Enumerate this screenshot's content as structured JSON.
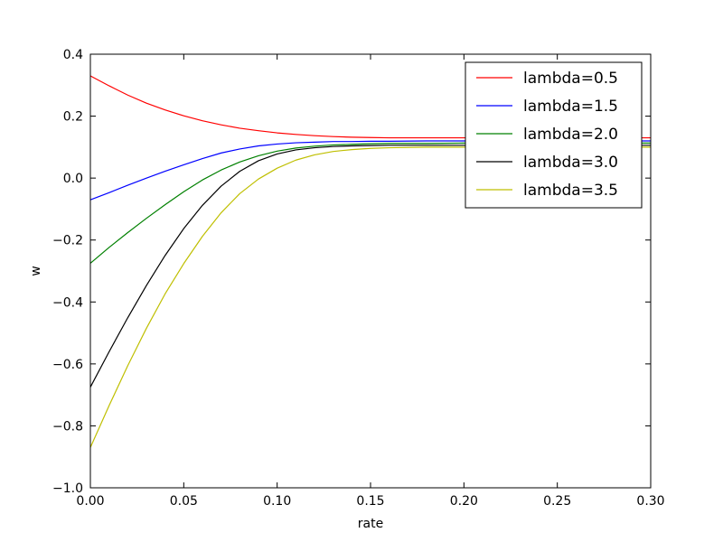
{
  "chart_data": {
    "type": "line",
    "xlabel": "rate",
    "ylabel": "w",
    "xlim": [
      0,
      0.3
    ],
    "ylim": [
      -1.0,
      0.4
    ],
    "xticks": [
      "0.00",
      "0.05",
      "0.10",
      "0.15",
      "0.20",
      "0.25",
      "0.30"
    ],
    "yticks": [
      "−1.0",
      "−0.8",
      "−0.6",
      "−0.4",
      "−0.2",
      "0.0",
      "0.2",
      "0.4"
    ],
    "grid": false,
    "legend_position": "top-right",
    "x": [
      0,
      0.01,
      0.02,
      0.03,
      0.04,
      0.05,
      0.06,
      0.07,
      0.08,
      0.09,
      0.1,
      0.11,
      0.12,
      0.13,
      0.14,
      0.15,
      0.16,
      0.18,
      0.2,
      0.22,
      0.25,
      0.28,
      0.3
    ],
    "series": [
      {
        "name": "lambda=0.5",
        "color": "#ff0000",
        "values": [
          0.33,
          0.298,
          0.268,
          0.242,
          0.22,
          0.201,
          0.185,
          0.172,
          0.161,
          0.153,
          0.146,
          0.141,
          0.137,
          0.134,
          0.132,
          0.131,
          0.13,
          0.13,
          0.13,
          0.13,
          0.13,
          0.13,
          0.13
        ]
      },
      {
        "name": "lambda=1.5",
        "color": "#0000ff",
        "values": [
          -0.07,
          -0.047,
          -0.023,
          0.0,
          0.022,
          0.043,
          0.063,
          0.081,
          0.094,
          0.104,
          0.11,
          0.114,
          0.116,
          0.118,
          0.118,
          0.119,
          0.119,
          0.12,
          0.12,
          0.12,
          0.12,
          0.12,
          0.12
        ]
      },
      {
        "name": "lambda=2.0",
        "color": "#008000",
        "values": [
          -0.275,
          -0.224,
          -0.176,
          -0.13,
          -0.086,
          -0.044,
          -0.006,
          0.026,
          0.052,
          0.072,
          0.087,
          0.097,
          0.103,
          0.107,
          0.109,
          0.111,
          0.112,
          0.112,
          0.113,
          0.113,
          0.113,
          0.113,
          0.113
        ]
      },
      {
        "name": "lambda=3.0",
        "color": "#000000",
        "values": [
          -0.675,
          -0.561,
          -0.451,
          -0.347,
          -0.25,
          -0.163,
          -0.088,
          -0.026,
          0.022,
          0.056,
          0.078,
          0.091,
          0.098,
          0.102,
          0.104,
          0.105,
          0.106,
          0.106,
          0.106,
          0.106,
          0.106,
          0.106,
          0.106
        ]
      },
      {
        "name": "lambda=3.5",
        "color": "#bfbf00",
        "values": [
          -0.87,
          -0.735,
          -0.606,
          -0.485,
          -0.374,
          -0.276,
          -0.188,
          -0.112,
          -0.05,
          -0.003,
          0.032,
          0.058,
          0.075,
          0.086,
          0.092,
          0.096,
          0.098,
          0.1,
          0.1,
          0.1,
          0.1,
          0.1,
          0.1
        ]
      }
    ]
  }
}
